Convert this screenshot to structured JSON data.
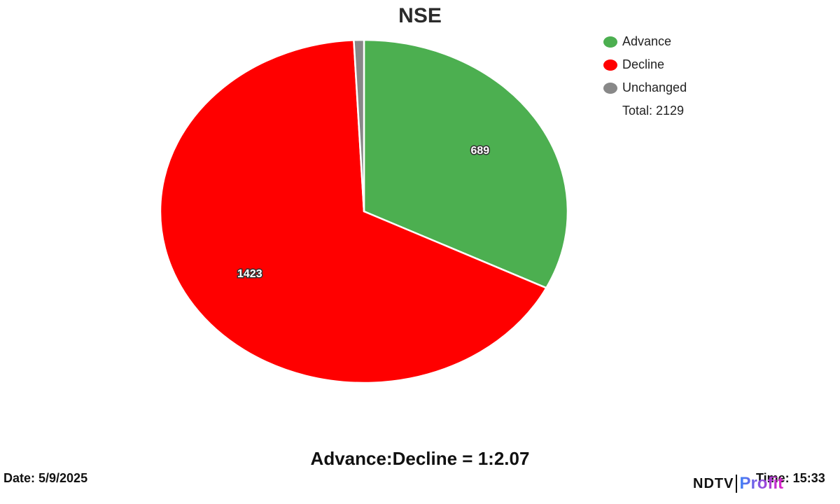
{
  "chart_data": {
    "type": "pie",
    "title": "NSE",
    "categories": [
      "Advance",
      "Decline",
      "Unchanged"
    ],
    "values": [
      689,
      1423,
      17
    ],
    "colors": [
      "#4caf50",
      "#ff0000",
      "#888888"
    ],
    "data_labels": [
      "689",
      "1423",
      ""
    ],
    "legend_position": "top-right",
    "total_label": "Total: 2129"
  },
  "footer": {
    "ratio": "Advance:Decline = 1:2.07",
    "date": "Date: 5/9/2025",
    "time": "Time: 15:33"
  },
  "logo": {
    "ndtv": "NDTV",
    "profit": "Profit"
  }
}
